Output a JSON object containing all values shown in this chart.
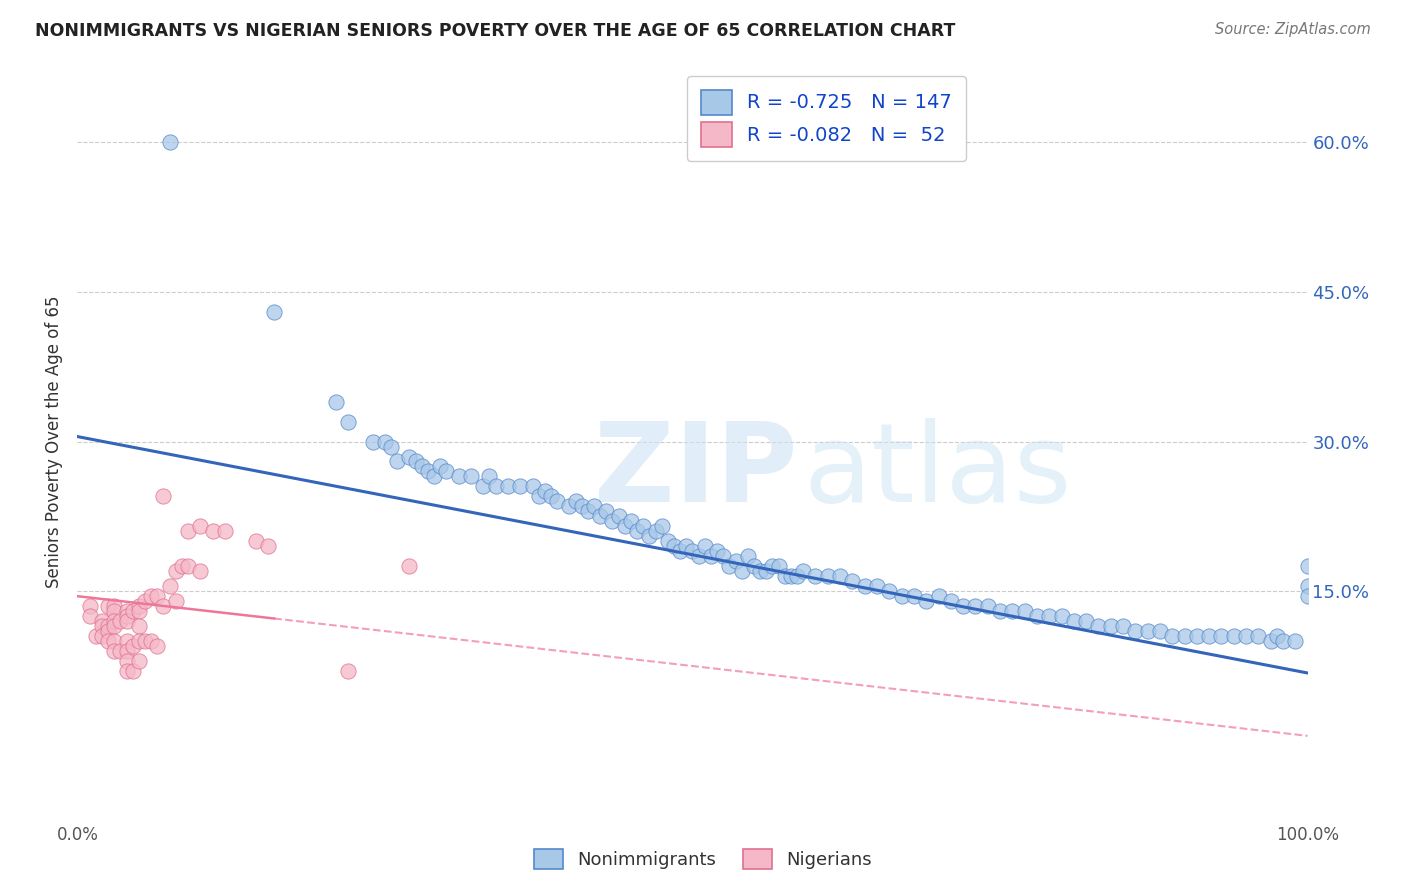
{
  "title": "NONIMMIGRANTS VS NIGERIAN SENIORS POVERTY OVER THE AGE OF 65 CORRELATION CHART",
  "source": "Source: ZipAtlas.com",
  "ylabel": "Seniors Poverty Over the Age of 65",
  "yticks": [
    "60.0%",
    "45.0%",
    "30.0%",
    "15.0%"
  ],
  "ytick_vals": [
    0.6,
    0.45,
    0.3,
    0.15
  ],
  "xlim": [
    0.0,
    1.0
  ],
  "ylim": [
    -0.08,
    0.68
  ],
  "blue_R": "-0.725",
  "blue_N": "147",
  "pink_R": "-0.082",
  "pink_N": "52",
  "blue_color": "#a8c8e8",
  "pink_color": "#f5b8c8",
  "blue_edge_color": "#5588cc",
  "pink_edge_color": "#e07090",
  "blue_line_color": "#3366bb",
  "pink_line_color": "#ee7799",
  "legend_label_blue": "Nonimmigrants",
  "legend_label_pink": "Nigerians",
  "blue_scatter_x": [
    0.075,
    0.16,
    0.21,
    0.22,
    0.24,
    0.25,
    0.255,
    0.26,
    0.27,
    0.275,
    0.28,
    0.285,
    0.29,
    0.295,
    0.3,
    0.31,
    0.32,
    0.33,
    0.335,
    0.34,
    0.35,
    0.36,
    0.37,
    0.375,
    0.38,
    0.385,
    0.39,
    0.4,
    0.405,
    0.41,
    0.415,
    0.42,
    0.425,
    0.43,
    0.435,
    0.44,
    0.445,
    0.45,
    0.455,
    0.46,
    0.465,
    0.47,
    0.475,
    0.48,
    0.485,
    0.49,
    0.495,
    0.5,
    0.505,
    0.51,
    0.515,
    0.52,
    0.525,
    0.53,
    0.535,
    0.54,
    0.545,
    0.55,
    0.555,
    0.56,
    0.565,
    0.57,
    0.575,
    0.58,
    0.585,
    0.59,
    0.6,
    0.61,
    0.62,
    0.63,
    0.64,
    0.65,
    0.66,
    0.67,
    0.68,
    0.69,
    0.7,
    0.71,
    0.72,
    0.73,
    0.74,
    0.75,
    0.76,
    0.77,
    0.78,
    0.79,
    0.8,
    0.81,
    0.82,
    0.83,
    0.84,
    0.85,
    0.86,
    0.87,
    0.88,
    0.89,
    0.9,
    0.91,
    0.92,
    0.93,
    0.94,
    0.95,
    0.96,
    0.97,
    0.975,
    0.98,
    0.99,
    1.0,
    1.0,
    1.0
  ],
  "blue_scatter_y": [
    0.6,
    0.43,
    0.34,
    0.32,
    0.3,
    0.3,
    0.295,
    0.28,
    0.285,
    0.28,
    0.275,
    0.27,
    0.265,
    0.275,
    0.27,
    0.265,
    0.265,
    0.255,
    0.265,
    0.255,
    0.255,
    0.255,
    0.255,
    0.245,
    0.25,
    0.245,
    0.24,
    0.235,
    0.24,
    0.235,
    0.23,
    0.235,
    0.225,
    0.23,
    0.22,
    0.225,
    0.215,
    0.22,
    0.21,
    0.215,
    0.205,
    0.21,
    0.215,
    0.2,
    0.195,
    0.19,
    0.195,
    0.19,
    0.185,
    0.195,
    0.185,
    0.19,
    0.185,
    0.175,
    0.18,
    0.17,
    0.185,
    0.175,
    0.17,
    0.17,
    0.175,
    0.175,
    0.165,
    0.165,
    0.165,
    0.17,
    0.165,
    0.165,
    0.165,
    0.16,
    0.155,
    0.155,
    0.15,
    0.145,
    0.145,
    0.14,
    0.145,
    0.14,
    0.135,
    0.135,
    0.135,
    0.13,
    0.13,
    0.13,
    0.125,
    0.125,
    0.125,
    0.12,
    0.12,
    0.115,
    0.115,
    0.115,
    0.11,
    0.11,
    0.11,
    0.105,
    0.105,
    0.105,
    0.105,
    0.105,
    0.105,
    0.105,
    0.105,
    0.1,
    0.105,
    0.1,
    0.1,
    0.155,
    0.145,
    0.175
  ],
  "pink_scatter_x": [
    0.01,
    0.01,
    0.015,
    0.02,
    0.02,
    0.02,
    0.025,
    0.025,
    0.025,
    0.025,
    0.03,
    0.03,
    0.03,
    0.03,
    0.03,
    0.03,
    0.035,
    0.035,
    0.04,
    0.04,
    0.04,
    0.04,
    0.04,
    0.04,
    0.04,
    0.045,
    0.045,
    0.045,
    0.05,
    0.05,
    0.05,
    0.05,
    0.05,
    0.055,
    0.055,
    0.06,
    0.06,
    0.065,
    0.065,
    0.07,
    0.07,
    0.075,
    0.08,
    0.08,
    0.085,
    0.09,
    0.09,
    0.1,
    0.1,
    0.11,
    0.12,
    0.145,
    0.155,
    0.22,
    0.27
  ],
  "pink_scatter_y": [
    0.135,
    0.125,
    0.105,
    0.12,
    0.115,
    0.105,
    0.135,
    0.115,
    0.11,
    0.1,
    0.135,
    0.13,
    0.12,
    0.115,
    0.1,
    0.09,
    0.12,
    0.09,
    0.13,
    0.125,
    0.12,
    0.1,
    0.09,
    0.08,
    0.07,
    0.13,
    0.095,
    0.07,
    0.135,
    0.13,
    0.115,
    0.1,
    0.08,
    0.14,
    0.1,
    0.145,
    0.1,
    0.145,
    0.095,
    0.245,
    0.135,
    0.155,
    0.17,
    0.14,
    0.175,
    0.21,
    0.175,
    0.215,
    0.17,
    0.21,
    0.21,
    0.2,
    0.195,
    0.07,
    0.175
  ],
  "blue_trendline_y_start": 0.305,
  "blue_trendline_y_end": 0.068,
  "pink_trendline_solid_end_x": 0.16,
  "pink_trendline_y_start": 0.145,
  "pink_trendline_y_end": 0.005
}
